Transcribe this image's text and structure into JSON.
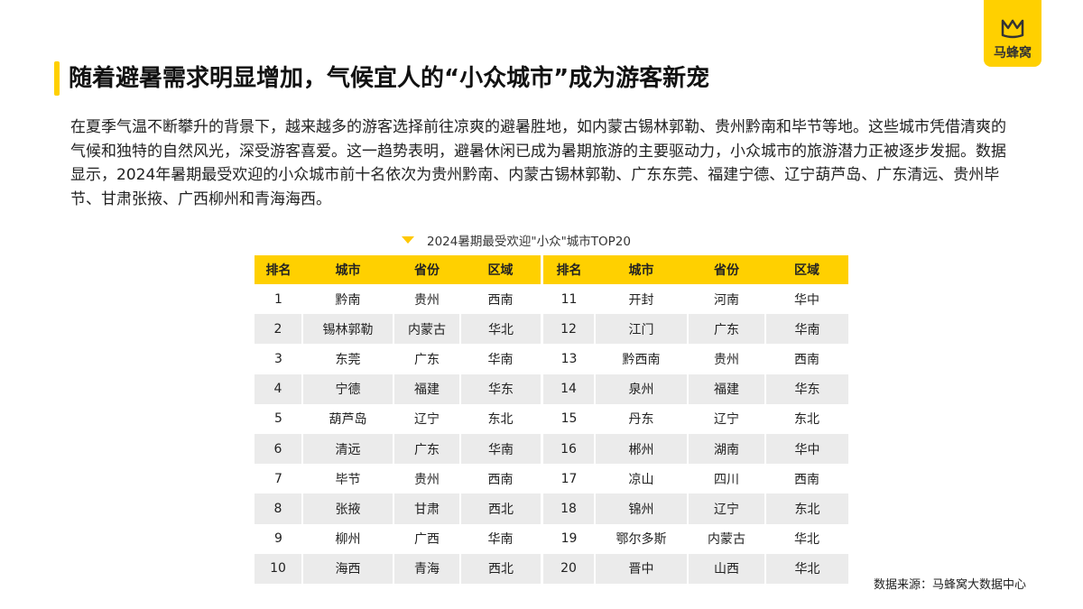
{
  "brand": {
    "logo_text": "马蜂窝",
    "color": "#ffd000"
  },
  "title": "随着避暑需求明显增加，气候宜人的“小众城市”成为游客新宠",
  "body": "在夏季气温不断攀升的背景下，越来越多的游客选择前往凉爽的避暑胜地，如内蒙古锡林郭勒、贵州黔南和毕节等地。这些城市凭借清爽的气候和独特的自然风光，深受游客喜爱。这一趋势表明，避暑休闲已成为暑期旅游的主要驱动力，小众城市的旅游潜力正被逐步发掘。数据显示，2024年暑期最受欢迎的小众城市前十名依次为贵州黔南、内蒙古锡林郭勒、广东东莞、福建宁德、辽宁葫芦岛、广东清远、贵州毕节、甘肃张掖、广西柳州和青海海西。",
  "table": {
    "caption": "2024暑期最受欢迎\"小众\"城市TOP20",
    "headers": [
      "排名",
      "城市",
      "省份",
      "区域"
    ],
    "left": [
      [
        "1",
        "黔南",
        "贵州",
        "西南"
      ],
      [
        "2",
        "锡林郭勒",
        "内蒙古",
        "华北"
      ],
      [
        "3",
        "东莞",
        "广东",
        "华南"
      ],
      [
        "4",
        "宁德",
        "福建",
        "华东"
      ],
      [
        "5",
        "葫芦岛",
        "辽宁",
        "东北"
      ],
      [
        "6",
        "清远",
        "广东",
        "华南"
      ],
      [
        "7",
        "毕节",
        "贵州",
        "西南"
      ],
      [
        "8",
        "张掖",
        "甘肃",
        "西北"
      ],
      [
        "9",
        "柳州",
        "广西",
        "华南"
      ],
      [
        "10",
        "海西",
        "青海",
        "西北"
      ]
    ],
    "right": [
      [
        "11",
        "开封",
        "河南",
        "华中"
      ],
      [
        "12",
        "江门",
        "广东",
        "华南"
      ],
      [
        "13",
        "黔西南",
        "贵州",
        "西南"
      ],
      [
        "14",
        "泉州",
        "福建",
        "华东"
      ],
      [
        "15",
        "丹东",
        "辽宁",
        "东北"
      ],
      [
        "16",
        "郴州",
        "湖南",
        "华中"
      ],
      [
        "17",
        "凉山",
        "四川",
        "西南"
      ],
      [
        "18",
        "锦州",
        "辽宁",
        "东北"
      ],
      [
        "19",
        "鄂尔多斯",
        "内蒙古",
        "华北"
      ],
      [
        "20",
        "晋中",
        "山西",
        "华北"
      ]
    ]
  },
  "source": "数据来源：马蜂窝大数据中心"
}
